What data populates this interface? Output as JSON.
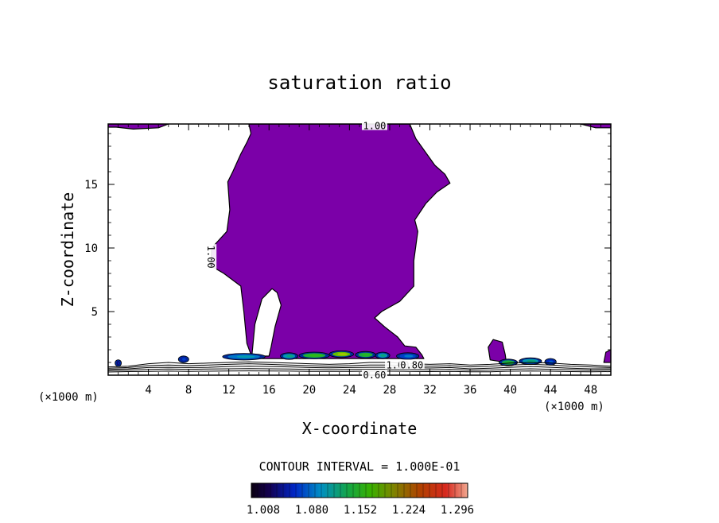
{
  "chart_data": {
    "type": "heatmap",
    "title": "saturation ratio",
    "xlabel": "X-coordinate",
    "ylabel": "Z-coordinate",
    "x_unit": "(×1000 m)",
    "y_unit": "(×1000 m)",
    "xlim": [
      0,
      50
    ],
    "ylim": [
      0,
      19.75
    ],
    "x_ticks": [
      4,
      8,
      12,
      16,
      20,
      24,
      28,
      32,
      36,
      40,
      44,
      48
    ],
    "y_ticks": [
      5,
      10,
      15
    ],
    "contour_interval_label": "CONTOUR INTERVAL = 1.000E-01",
    "contour_labels": [
      "1.00",
      "1.00",
      "1.00",
      "0.80",
      "0.60"
    ],
    "colorbar_labels": [
      "1.008",
      "1.080",
      "1.152",
      "1.224",
      "1.296"
    ],
    "colorbar_range": [
      0.99,
      1.33
    ],
    "fill_color": "#7b00a8",
    "regions": {
      "main_plume": [
        [
          14.3,
          1.4
        ],
        [
          13.8,
          2.5
        ],
        [
          13.5,
          5.0
        ],
        [
          13.2,
          7.0
        ],
        [
          11.5,
          8.0
        ],
        [
          10.2,
          8.6
        ],
        [
          10.3,
          10.0
        ],
        [
          11.8,
          11.3
        ],
        [
          12.1,
          13.0
        ],
        [
          11.9,
          15.2
        ],
        [
          12.4,
          16.0
        ],
        [
          13.2,
          17.4
        ],
        [
          13.8,
          18.3
        ],
        [
          14.2,
          19.0
        ],
        [
          14.0,
          19.75
        ],
        [
          30.0,
          19.75
        ],
        [
          30.6,
          18.6
        ],
        [
          31.5,
          17.6
        ],
        [
          32.5,
          16.5
        ],
        [
          33.5,
          15.8
        ],
        [
          34.0,
          15.1
        ],
        [
          32.7,
          14.4
        ],
        [
          31.6,
          13.5
        ],
        [
          30.5,
          12.2
        ],
        [
          30.8,
          11.3
        ],
        [
          30.4,
          9.0
        ],
        [
          30.4,
          7.0
        ],
        [
          29.0,
          5.8
        ],
        [
          27.2,
          5.0
        ],
        [
          26.5,
          4.5
        ],
        [
          27.5,
          3.8
        ],
        [
          28.8,
          3.0
        ],
        [
          29.5,
          2.3
        ],
        [
          30.6,
          2.2
        ],
        [
          31.2,
          1.6
        ],
        [
          31.4,
          1.3
        ],
        [
          14.3,
          1.3
        ]
      ],
      "clear_pocket": [
        [
          14.3,
          1.6
        ],
        [
          14.6,
          4.0
        ],
        [
          15.3,
          6.0
        ],
        [
          16.3,
          6.8
        ],
        [
          16.8,
          6.5
        ],
        [
          17.2,
          5.5
        ],
        [
          16.6,
          3.8
        ],
        [
          16.2,
          2.2
        ],
        [
          16.0,
          1.5
        ],
        [
          15.2,
          1.5
        ]
      ],
      "top_left_cap": [
        [
          0.0,
          19.75
        ],
        [
          6.0,
          19.75
        ],
        [
          5.0,
          19.45
        ],
        [
          2.5,
          19.35
        ],
        [
          0.8,
          19.5
        ],
        [
          0.0,
          19.5
        ]
      ],
      "top_right_cap": [
        [
          47.0,
          19.75
        ],
        [
          50.0,
          19.75
        ],
        [
          50.0,
          19.45
        ],
        [
          48.5,
          19.45
        ]
      ],
      "bump_38": [
        [
          38.0,
          1.2
        ],
        [
          37.8,
          2.2
        ],
        [
          38.3,
          2.8
        ],
        [
          39.2,
          2.6
        ],
        [
          39.5,
          1.6
        ],
        [
          39.6,
          1.0
        ]
      ],
      "right_edge": [
        [
          49.3,
          1.0
        ],
        [
          49.5,
          1.8
        ],
        [
          50.0,
          2.0
        ],
        [
          50.0,
          1.0
        ]
      ]
    },
    "high_spots": [
      {
        "x": 13.5,
        "z": 1.45,
        "w": 4.0,
        "v": 1.08
      },
      {
        "x": 18.0,
        "z": 1.5,
        "w": 1.5,
        "v": 1.1
      },
      {
        "x": 20.5,
        "z": 1.55,
        "w": 2.8,
        "v": 1.16
      },
      {
        "x": 23.2,
        "z": 1.65,
        "w": 2.2,
        "v": 1.22
      },
      {
        "x": 25.6,
        "z": 1.6,
        "w": 1.8,
        "v": 1.15
      },
      {
        "x": 27.3,
        "z": 1.55,
        "w": 1.2,
        "v": 1.1
      },
      {
        "x": 29.8,
        "z": 1.5,
        "w": 2.0,
        "v": 1.06
      },
      {
        "x": 39.8,
        "z": 1.0,
        "w": 1.6,
        "v": 1.14
      },
      {
        "x": 42.0,
        "z": 1.1,
        "w": 2.0,
        "v": 1.1
      },
      {
        "x": 44.0,
        "z": 1.05,
        "w": 0.9,
        "v": 1.05
      },
      {
        "x": 7.5,
        "z": 1.25,
        "w": 0.8,
        "v": 1.04
      },
      {
        "x": 1.0,
        "z": 0.95,
        "w": 0.4,
        "v": 1.02
      }
    ],
    "surface_contours": [
      {
        "level": 1.0,
        "z": [
          0.65,
          0.7,
          0.9,
          1.0,
          0.9,
          0.95,
          1.0,
          1.05,
          1.0,
          0.95,
          0.9,
          0.85,
          0.9,
          1.0,
          1.0,
          0.9,
          0.85,
          0.9,
          0.8,
          0.85,
          0.95,
          1.0,
          0.95,
          0.85,
          0.8,
          0.7
        ]
      },
      {
        "level": 0.9,
        "z": [
          0.55,
          0.6,
          0.75,
          0.8,
          0.75,
          0.8,
          0.85,
          0.9,
          0.85,
          0.8,
          0.75,
          0.7,
          0.75,
          0.8,
          0.8,
          0.75,
          0.7,
          0.75,
          0.65,
          0.7,
          0.8,
          0.85,
          0.8,
          0.7,
          0.65,
          0.6
        ]
      },
      {
        "level": 0.8,
        "z": [
          0.45,
          0.5,
          0.6,
          0.62,
          0.6,
          0.62,
          0.68,
          0.7,
          0.68,
          0.65,
          0.6,
          0.58,
          0.6,
          0.62,
          0.62,
          0.6,
          0.56,
          0.6,
          0.5,
          0.55,
          0.62,
          0.68,
          0.62,
          0.55,
          0.5,
          0.5
        ]
      },
      {
        "level": 0.7,
        "z": [
          0.35,
          0.4,
          0.45,
          0.48,
          0.46,
          0.48,
          0.5,
          0.52,
          0.5,
          0.48,
          0.45,
          0.44,
          0.45,
          0.46,
          0.46,
          0.45,
          0.42,
          0.45,
          0.38,
          0.4,
          0.46,
          0.5,
          0.46,
          0.42,
          0.38,
          0.4
        ]
      },
      {
        "level": 0.6,
        "z": [
          0.25,
          0.28,
          0.3,
          0.32,
          0.3,
          0.31,
          0.33,
          0.34,
          0.33,
          0.32,
          0.3,
          0.3,
          0.3,
          0.31,
          0.31,
          0.3,
          0.28,
          0.3,
          0.26,
          0.27,
          0.31,
          0.33,
          0.31,
          0.28,
          0.26,
          0.28
        ]
      }
    ]
  }
}
